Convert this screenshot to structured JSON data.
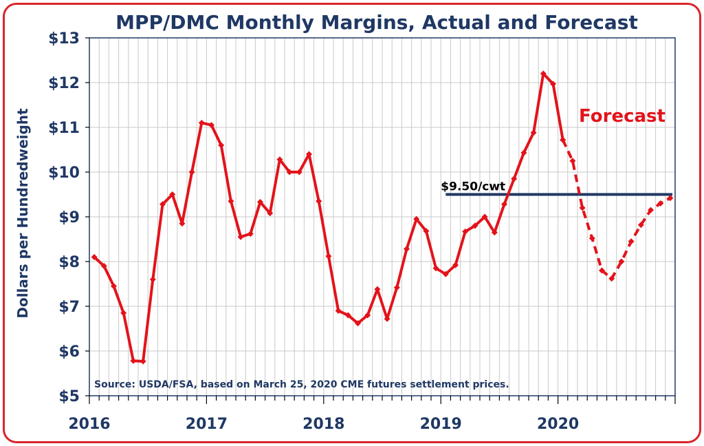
{
  "chart_data": {
    "type": "line",
    "title": "MPP/DMC Monthly Margins, Actual and Forecast",
    "ylabel": "Dollars per Hundredweight",
    "xlabel": "",
    "ylim": [
      5,
      13
    ],
    "y_ticks": [
      5,
      6,
      7,
      8,
      9,
      10,
      11,
      12,
      13
    ],
    "y_tick_labels": [
      "$5",
      "$6",
      "$7",
      "$8",
      "$9",
      "$10",
      "$11",
      "$12",
      "$13"
    ],
    "x_tick_labels": [
      "2016",
      "2017",
      "2018",
      "2019",
      "2020"
    ],
    "x_unit": "month",
    "x_range": [
      "2016-01",
      "2020-12"
    ],
    "grid": true,
    "series": [
      {
        "name": "Actual",
        "style": "solid",
        "color": "#e3131b",
        "x": [
          "2016-01",
          "2016-02",
          "2016-03",
          "2016-04",
          "2016-05",
          "2016-06",
          "2016-07",
          "2016-08",
          "2016-09",
          "2016-10",
          "2016-11",
          "2016-12",
          "2017-01",
          "2017-02",
          "2017-03",
          "2017-04",
          "2017-05",
          "2017-06",
          "2017-07",
          "2017-08",
          "2017-09",
          "2017-10",
          "2017-11",
          "2017-12",
          "2018-01",
          "2018-02",
          "2018-03",
          "2018-04",
          "2018-05",
          "2018-06",
          "2018-07",
          "2018-08",
          "2018-09",
          "2018-10",
          "2018-11",
          "2018-12",
          "2019-01",
          "2019-02",
          "2019-03",
          "2019-04",
          "2019-05",
          "2019-06",
          "2019-07",
          "2019-08",
          "2019-09",
          "2019-10",
          "2019-11",
          "2019-12",
          "2020-01"
        ],
        "values": [
          8.1,
          7.9,
          7.45,
          6.85,
          5.78,
          5.77,
          7.6,
          9.28,
          9.5,
          8.85,
          10.0,
          11.1,
          11.05,
          10.6,
          9.35,
          8.55,
          8.62,
          9.33,
          9.08,
          10.28,
          10.0,
          10.0,
          10.4,
          9.35,
          8.12,
          6.9,
          6.8,
          6.62,
          6.8,
          7.38,
          6.72,
          7.42,
          8.28,
          8.95,
          8.68,
          7.85,
          7.72,
          7.92,
          8.67,
          8.8,
          9.0,
          8.65,
          9.28,
          9.85,
          10.43,
          10.88,
          12.2,
          11.97,
          10.72
        ]
      },
      {
        "name": "Forecast",
        "style": "dashed",
        "color": "#e3131b",
        "x": [
          "2020-01",
          "2020-02",
          "2020-03",
          "2020-04",
          "2020-05",
          "2020-06",
          "2020-07",
          "2020-08",
          "2020-09",
          "2020-10",
          "2020-11",
          "2020-12"
        ],
        "values": [
          10.72,
          10.25,
          9.2,
          8.52,
          7.8,
          7.62,
          8.0,
          8.45,
          8.82,
          9.15,
          9.3,
          9.42
        ]
      }
    ],
    "reference_line": {
      "value": 9.5,
      "label": "$9.50/cwt",
      "from": "2019-01",
      "to": "2020-12",
      "color": "#1f3864"
    },
    "annotations": {
      "forecast_text": "Forecast",
      "source_text": "Source:  USDA/FSA, based on March 25, 2020 CME futures settlement prices."
    },
    "colors": {
      "frame_border": "#d9252a",
      "axis_text": "#1f3864",
      "grid": "#c8c8c8",
      "series": "#e3131b"
    }
  }
}
